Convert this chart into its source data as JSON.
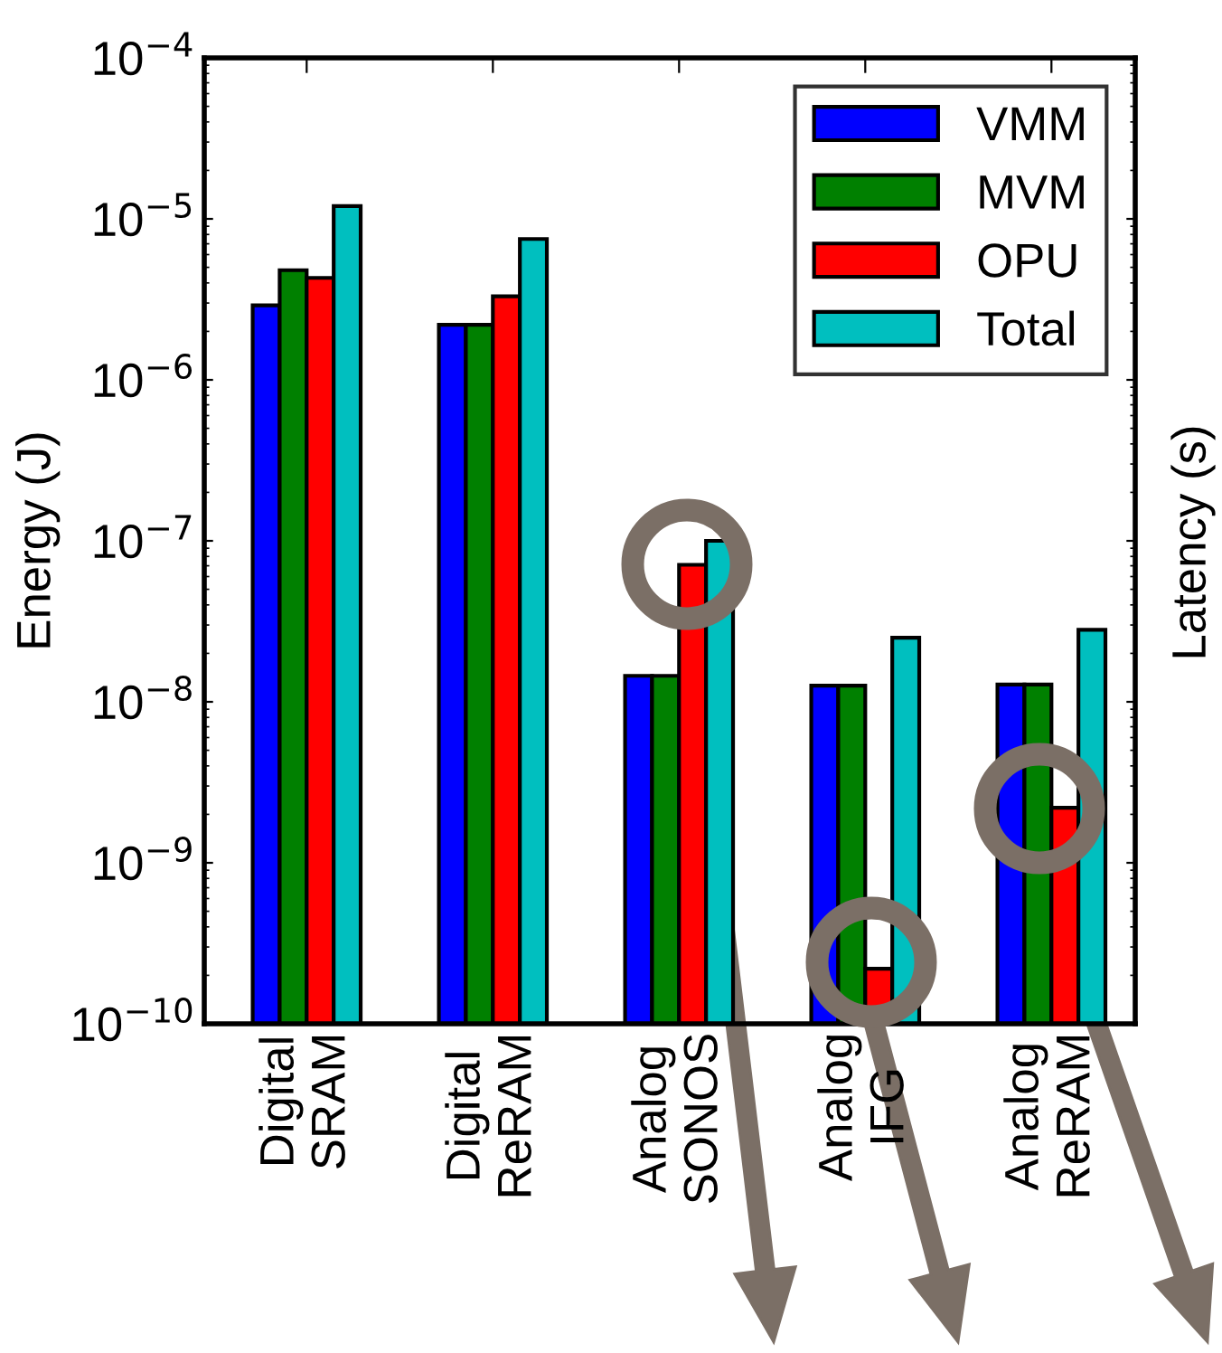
{
  "chart_data": {
    "type": "bar",
    "ylabel": "Energy (J)",
    "log": true,
    "categories": [
      "Digital\nSRAM",
      "Digital\nReRAM",
      "Analog\nSONOS",
      "Analog\nIFG",
      "Analog\nReRAM"
    ],
    "series": [
      {
        "name": "VMM",
        "color": "#0000ff",
        "values": [
          2.9e-06,
          2.2e-06,
          1.45e-08,
          1.26e-08,
          1.28e-08
        ]
      },
      {
        "name": "MVM",
        "color": "#008000",
        "values": [
          4.8e-06,
          2.2e-06,
          1.45e-08,
          1.26e-08,
          1.28e-08
        ]
      },
      {
        "name": "OPU",
        "color": "#ff0000",
        "values": [
          4.3e-06,
          3.3e-06,
          7.1e-08,
          2.2e-10,
          2.2e-09
        ]
      },
      {
        "name": "Total",
        "color": "#00bfbf",
        "values": [
          1.2e-05,
          7.5e-06,
          1e-07,
          2.5e-08,
          2.8e-08
        ]
      }
    ],
    "ylim": [
      1e-10,
      0.0001
    ],
    "yticks": [
      {
        "value": 1e-10,
        "label": "10$^{−10}$"
      },
      {
        "value": 1e-09,
        "label": "10$^{−9}$"
      },
      {
        "value": 1e-08,
        "label": "10$^{−8}$"
      },
      {
        "value": 1e-07,
        "label": "10$^{−7}$"
      },
      {
        "value": 1e-06,
        "label": "10$^{−6}$"
      },
      {
        "value": 1e-05,
        "label": "10$^{−5}$"
      },
      {
        "value": 0.0001,
        "label": "10$^{−4}$"
      }
    ],
    "grid": false,
    "legend": "top right",
    "annotations": [
      "Latency (s)"
    ]
  }
}
